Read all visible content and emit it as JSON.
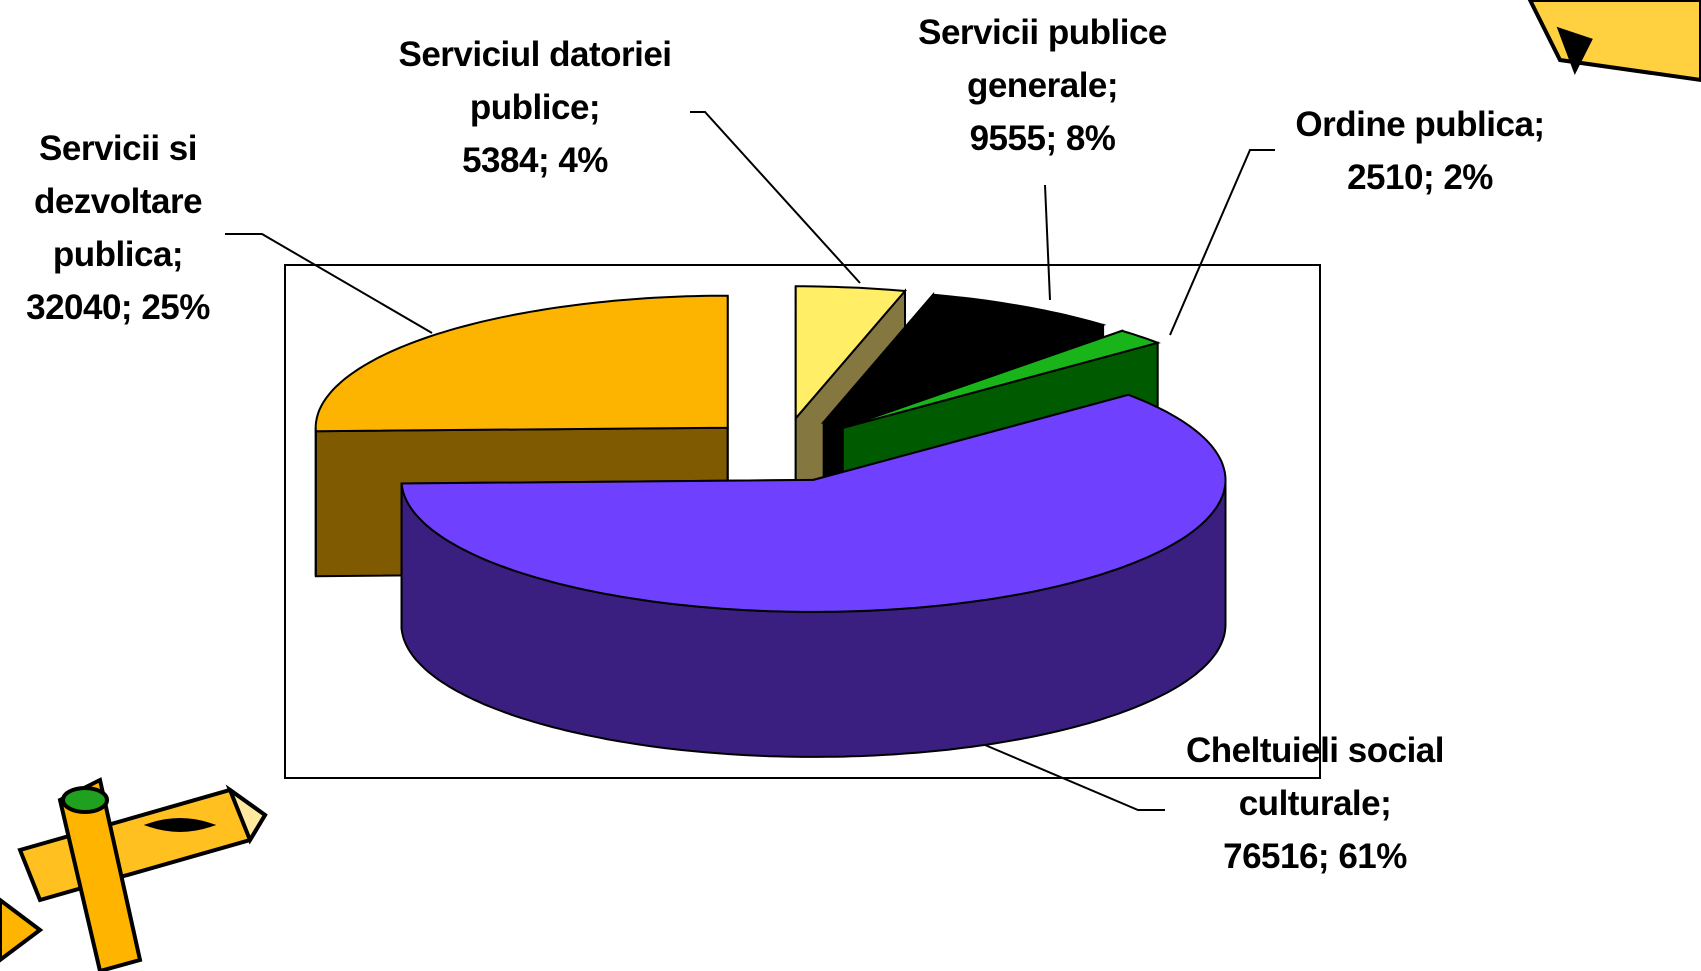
{
  "chart_data": {
    "type": "pie3d",
    "categories": [
      "Serviciul datoriei publice;",
      "Servicii publice generale;",
      "Ordine publica;",
      "Cheltuieli social culturale;",
      "Servicii si dezvoltare publica;"
    ],
    "values": [
      5384,
      9555,
      2510,
      76516,
      32040
    ],
    "value_labels": [
      "5384; 4%",
      "9555; 8%",
      "2510; 2%",
      "76516; 61%",
      "32040; 25%"
    ],
    "colors": [
      "#FFEE66",
      "#000000",
      "#19B419",
      "#7040FF",
      "#FDB400"
    ],
    "side_colors": [
      "#847840",
      "#000000",
      "#005A00",
      "#3A1F80",
      "#7F5A00"
    ]
  }
}
